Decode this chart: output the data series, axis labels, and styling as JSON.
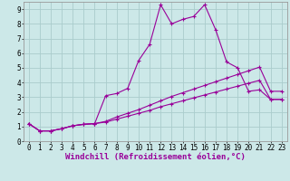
{
  "title": "",
  "xlabel": "Windchill (Refroidissement éolien,°C)",
  "background_color": "#cce8e8",
  "grid_color": "#aacccc",
  "line_color": "#990099",
  "xlim": [
    -0.5,
    23.5
  ],
  "ylim": [
    0,
    9.5
  ],
  "x_ticks": [
    0,
    1,
    2,
    3,
    4,
    5,
    6,
    7,
    8,
    9,
    10,
    11,
    12,
    13,
    14,
    15,
    16,
    17,
    18,
    19,
    20,
    21,
    22,
    23
  ],
  "y_ticks": [
    0,
    1,
    2,
    3,
    4,
    5,
    6,
    7,
    8,
    9
  ],
  "series1_x": [
    0,
    1,
    2,
    3,
    4,
    5,
    6,
    7,
    8,
    9,
    10,
    11,
    12,
    13,
    14,
    15,
    16,
    17,
    18,
    19,
    20,
    21,
    22,
    23
  ],
  "series1_y": [
    1.2,
    0.7,
    0.7,
    0.85,
    1.05,
    1.15,
    1.2,
    3.1,
    3.25,
    3.6,
    5.5,
    6.6,
    9.3,
    8.0,
    8.3,
    8.5,
    9.3,
    7.6,
    5.4,
    5.0,
    3.4,
    3.5,
    2.85,
    2.85
  ],
  "series2_x": [
    0,
    1,
    2,
    3,
    4,
    5,
    6,
    7,
    8,
    9,
    10,
    11,
    12,
    13,
    14,
    15,
    16,
    17,
    18,
    19,
    20,
    21,
    22,
    23
  ],
  "series2_y": [
    1.2,
    0.7,
    0.7,
    0.85,
    1.05,
    1.15,
    1.2,
    1.35,
    1.65,
    1.9,
    2.15,
    2.45,
    2.75,
    3.05,
    3.3,
    3.55,
    3.8,
    4.05,
    4.3,
    4.55,
    4.8,
    5.05,
    3.4,
    3.4
  ],
  "series3_x": [
    0,
    1,
    2,
    3,
    4,
    5,
    6,
    7,
    8,
    9,
    10,
    11,
    12,
    13,
    14,
    15,
    16,
    17,
    18,
    19,
    20,
    21,
    22,
    23
  ],
  "series3_y": [
    1.2,
    0.7,
    0.7,
    0.85,
    1.05,
    1.15,
    1.2,
    1.3,
    1.5,
    1.7,
    1.9,
    2.1,
    2.35,
    2.55,
    2.75,
    2.95,
    3.15,
    3.35,
    3.55,
    3.75,
    3.95,
    4.15,
    2.85,
    2.85
  ],
  "xlabel_fontsize": 6.5,
  "tick_fontsize": 5.5,
  "figsize": [
    3.2,
    2.0
  ],
  "dpi": 100
}
